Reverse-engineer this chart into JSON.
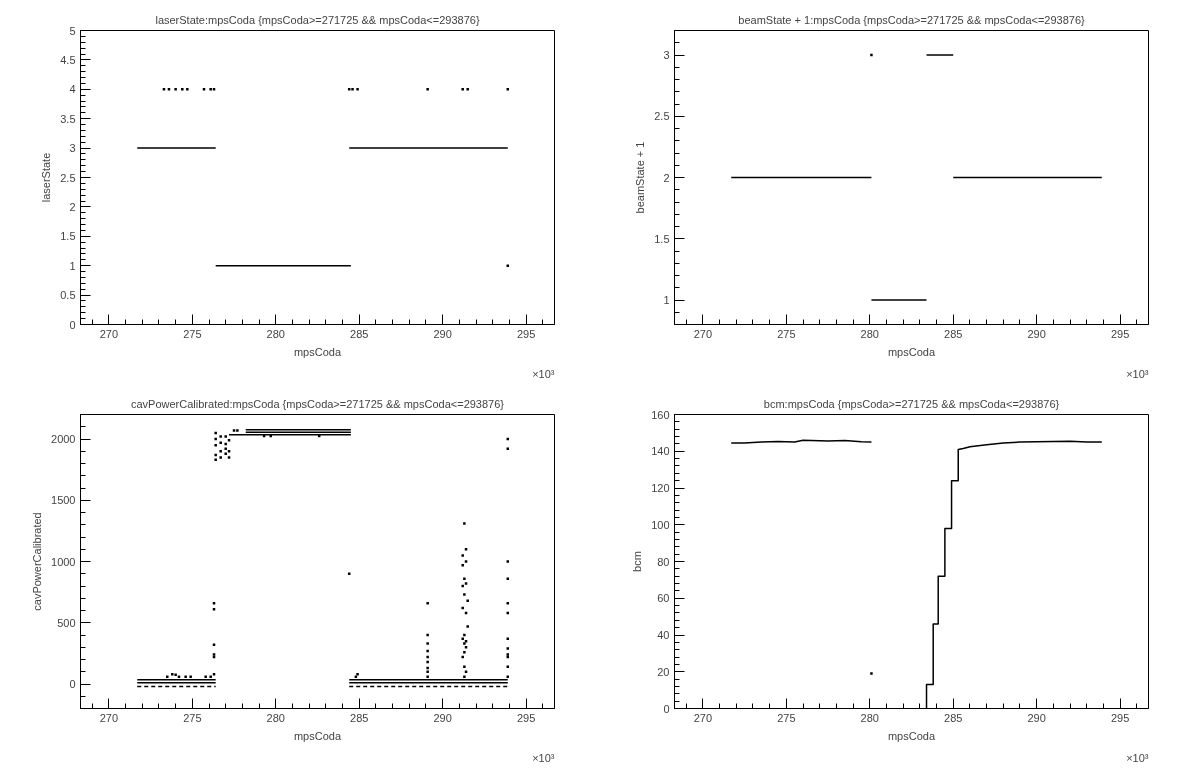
{
  "chart_data": [
    {
      "type": "scatter",
      "title": "laserState:mpsCoda {mpsCoda>=271725 && mpsCoda<=293876}",
      "xlabel": "mpsCoda",
      "ylabel": "laserState",
      "annotations": [
        "×10³"
      ],
      "xlim": [
        268.3,
        296.7
      ],
      "xticks": [
        270,
        275,
        280,
        285,
        290,
        295
      ],
      "ylim": [
        0,
        5
      ],
      "yticks": [
        0,
        0.5,
        1,
        1.5,
        2,
        2.5,
        3,
        3.5,
        4,
        4.5,
        5
      ],
      "grid": false,
      "series": [
        {
          "type": "line",
          "color": "#000000",
          "marker": "none",
          "line_style": "solid",
          "x": [
            271.7,
            276.4,
            280,
            284.4,
            293.9
          ],
          "values": [
            3,
            3,
            null,
            3,
            3
          ]
        },
        {
          "type": "line",
          "color": "#000000",
          "marker": "none",
          "line_style": "solid",
          "x": [
            276.4,
            284.5
          ],
          "values": [
            1,
            1
          ]
        },
        {
          "color": "#000000",
          "marker": "square",
          "x": [
            273.3,
            273.6,
            274.0,
            274.4,
            274.7,
            275.7,
            276.1,
            276.3,
            284.4,
            284.6,
            284.9,
            289.1,
            291.2,
            291.5,
            293.9,
            293.9
          ],
          "values": [
            4,
            4,
            4,
            4,
            4,
            4,
            4,
            4,
            4,
            4,
            4,
            4,
            4,
            4,
            4,
            1
          ]
        }
      ]
    },
    {
      "type": "scatter",
      "title": "beamState + 1:mpsCoda {mpsCoda>=271725 && mpsCoda<=293876}",
      "xlabel": "mpsCoda",
      "ylabel": "beamState + 1",
      "annotations": [
        "×10³"
      ],
      "xlim": [
        268.3,
        296.7
      ],
      "xticks": [
        270,
        275,
        280,
        285,
        290,
        295
      ],
      "ylim": [
        0.8,
        3.2
      ],
      "yticks": [
        1,
        1.5,
        2,
        2.5,
        3
      ],
      "grid": false,
      "series": [
        {
          "type": "line",
          "color": "#000000",
          "marker": "none",
          "line_style": "solid",
          "x": [
            271.7,
            280.1,
            282.5,
            285.0,
            293.9
          ],
          "values": [
            2,
            2,
            null,
            2,
            2
          ]
        },
        {
          "type": "line",
          "color": "#000000",
          "marker": "none",
          "line_style": "solid",
          "x": [
            280.1,
            283.4
          ],
          "values": [
            1,
            1
          ]
        },
        {
          "type": "line",
          "color": "#000000",
          "marker": "none",
          "line_style": "solid",
          "x": [
            283.4,
            285.0
          ],
          "values": [
            3,
            3
          ]
        },
        {
          "color": "#000000",
          "marker": "square",
          "x": [
            280.1
          ],
          "values": [
            3
          ]
        }
      ]
    },
    {
      "type": "scatter",
      "title": "cavPowerCalibrated:mpsCoda {mpsCoda>=271725 && mpsCoda<=293876}",
      "xlabel": "mpsCoda",
      "ylabel": "cavPowerCalibrated",
      "annotations": [
        "×10³"
      ],
      "xlim": [
        268.3,
        296.7
      ],
      "xticks": [
        270,
        275,
        280,
        285,
        290,
        295
      ],
      "ylim": [
        -200,
        2200
      ],
      "yticks": [
        0,
        500,
        1000,
        1500,
        2000
      ],
      "grid": false,
      "series": [
        {
          "type": "line",
          "color": "#000000",
          "marker": "none",
          "line_style": "solid",
          "x": [
            271.7,
            276.4,
            280,
            284.4,
            293.9
          ],
          "values": [
            35,
            35,
            null,
            35,
            35
          ]
        },
        {
          "type": "line",
          "color": "#000000",
          "marker": "none",
          "line_style": "solid",
          "x": [
            271.7,
            276.4,
            280,
            284.4,
            293.9
          ],
          "values": [
            10,
            10,
            null,
            10,
            10
          ]
        },
        {
          "type": "line",
          "color": "#000000",
          "marker": "none",
          "line_style": "dashed",
          "x": [
            271.7,
            276.4,
            280,
            284.4,
            293.9
          ],
          "values": [
            -20,
            -20,
            null,
            -20,
            -20
          ]
        },
        {
          "type": "line",
          "color": "#000000",
          "marker": "none",
          "line_style": "solid",
          "x": [
            278.2,
            284.5
          ],
          "values": [
            2075,
            2075
          ]
        },
        {
          "type": "line",
          "color": "#000000",
          "marker": "none",
          "line_style": "solid",
          "x": [
            278.2,
            284.5
          ],
          "values": [
            2055,
            2055
          ]
        },
        {
          "type": "line",
          "color": "#000000",
          "marker": "none",
          "line_style": "solid",
          "x": [
            277.2,
            284.5
          ],
          "values": [
            2035,
            2035
          ]
        },
        {
          "color": "#000000",
          "marker": "square",
          "x": [
            276.4,
            276.4,
            276.4,
            276.4,
            276.4,
            276.7,
            276.7,
            276.7,
            276.7,
            277.0,
            277.0,
            277.0,
            277.0,
            277.2,
            277.2,
            277.2,
            277.5,
            277.7,
            279.3,
            279.7,
            282.6,
            276.3,
            276.3,
            276.3,
            276.3,
            276.3,
            276.3,
            273.5,
            273.8,
            274.0,
            274.2,
            274.6,
            274.9,
            275.8,
            276.1,
            284.4,
            284.8,
            284.9,
            289.1,
            289.1,
            289.1,
            289.1,
            289.1,
            289.1,
            289.1,
            289.1,
            289.1,
            291.3,
            291.4,
            291.2,
            291.4,
            291.2,
            291.3,
            291.4,
            291.2,
            291.3,
            291.5,
            291.2,
            291.4,
            291.5,
            291.3,
            291.2,
            291.4,
            291.3,
            291.4,
            291.3,
            291.2,
            291.3,
            291.4,
            291.3,
            293.9,
            293.9,
            293.9,
            293.9,
            293.9,
            293.9,
            293.9,
            293.9,
            293.9,
            293.9,
            293.9,
            293.9
          ],
          "values": [
            2050,
            2000,
            1950,
            1870,
            1830,
            2020,
            1970,
            1900,
            1850,
            2020,
            1960,
            1920,
            1880,
            1990,
            1900,
            1850,
            2070,
            2070,
            2025,
            2025,
            2025,
            660,
            610,
            320,
            240,
            220,
            80,
            60,
            80,
            75,
            60,
            60,
            60,
            60,
            60,
            900,
            60,
            80,
            660,
            400,
            330,
            270,
            220,
            180,
            130,
            100,
            60,
            1310,
            1100,
            1050,
            1000,
            970,
            860,
            820,
            800,
            730,
            680,
            620,
            580,
            470,
            400,
            370,
            350,
            330,
            300,
            260,
            220,
            140,
            100,
            60,
            2000,
            1920,
            1000,
            860,
            660,
            580,
            370,
            290,
            240,
            220,
            140,
            60
          ]
        }
      ]
    },
    {
      "type": "scatter",
      "title": "bcm:mpsCoda {mpsCoda>=271725 && mpsCoda<=293876}",
      "xlabel": "mpsCoda",
      "ylabel": "bcm",
      "annotations": [
        "×10³"
      ],
      "xlim": [
        268.3,
        296.7
      ],
      "xticks": [
        270,
        275,
        280,
        285,
        290,
        295
      ],
      "ylim": [
        0,
        160
      ],
      "yticks": [
        0,
        20,
        40,
        60,
        80,
        100,
        120,
        140,
        160
      ],
      "grid": false,
      "series": [
        {
          "type": "line",
          "color": "#000000",
          "marker": "none",
          "line_style": "solid",
          "x": [
            271.7,
            272.5,
            273.5,
            274.5,
            275.5,
            276.0,
            276.5,
            277.5,
            278.5,
            279.5,
            280.1,
            282.0,
            283.4,
            283.4,
            283.8,
            283.8,
            284.1,
            284.1,
            284.5,
            284.5,
            284.9,
            284.9,
            285.3,
            285.3,
            285.6,
            286.0,
            287.0,
            288.0,
            289.0,
            290.0,
            291.0,
            292.0,
            293.0,
            293.9
          ],
          "values": [
            144.5,
            144.5,
            145,
            145.3,
            145,
            146,
            145.8,
            145.6,
            145.8,
            145.2,
            145,
            null,
            0,
            13,
            13,
            46,
            46,
            72,
            72,
            98,
            98,
            124,
            124,
            141,
            141.5,
            142.5,
            143.5,
            144.5,
            145,
            145.2,
            145.3,
            145.5,
            145,
            145
          ]
        },
        {
          "color": "#000000",
          "marker": "square",
          "x": [
            280.1
          ],
          "values": [
            19
          ]
        }
      ]
    }
  ]
}
